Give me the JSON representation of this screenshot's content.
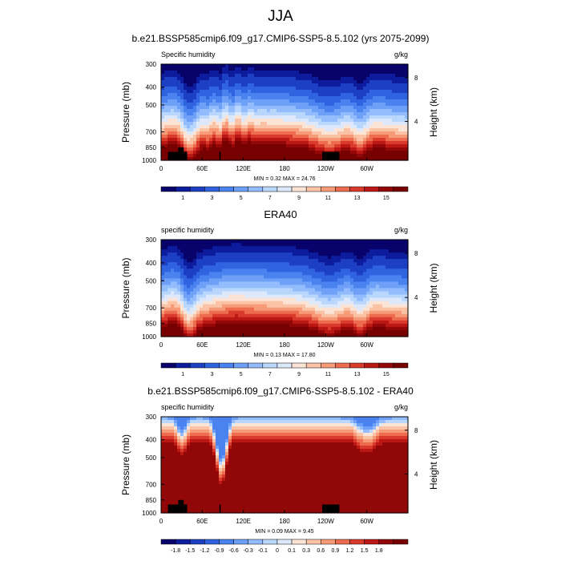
{
  "figure": {
    "title": "JJA"
  },
  "colors": {
    "abs_palette": [
      "#08036b",
      "#0d1c9c",
      "#1d3fc4",
      "#2f63e0",
      "#4a82ef",
      "#6ea0f7",
      "#93bcfc",
      "#b9d6fd",
      "#dde9fb",
      "#fbe3d5",
      "#fbc3a6",
      "#f79a77",
      "#ed6c4f",
      "#d93a2c",
      "#bb1815",
      "#920808",
      "#770101"
    ],
    "diff_palette": [
      "#08036b",
      "#0d1c9c",
      "#1d3fc4",
      "#2f63e0",
      "#4a82ef",
      "#6ea0f7",
      "#93bcfc",
      "#b9d6fd",
      "#dde9fb",
      "#fbe3d5",
      "#fbc3a6",
      "#f79a77",
      "#ed6c4f",
      "#d93a2c",
      "#bb1815",
      "#920808",
      "#770101"
    ]
  },
  "chart_data": [
    {
      "type": "contour",
      "title": "b.e21.BSSP585cmip6.f09_g17.CMIP6-SSP5-8.5.102 (yrs 2075-2099)",
      "left_label": "Specific humidity",
      "right_label": "g/kg",
      "ylabel": "Pressure (mb)",
      "y2label": "Height (km)",
      "yticks": [
        300,
        400,
        500,
        700,
        850,
        1000
      ],
      "y2ticks": [
        8,
        4
      ],
      "xticks": [
        "0",
        "60E",
        "120E",
        "180",
        "120W",
        "60W"
      ],
      "stats": "MIN =   0.32  MAX =  24.76",
      "colorbar_labels": [
        "1",
        "3",
        "5",
        "7",
        "9",
        "11",
        "13",
        "15"
      ],
      "colorbar_levels": [
        0.5,
        1,
        2,
        3,
        4,
        5,
        6,
        7,
        8,
        9,
        10,
        11,
        12,
        13,
        14,
        15
      ],
      "xlim": [
        0,
        360
      ],
      "ylim": [
        1000,
        300
      ],
      "data_range": [
        0.32,
        24.76
      ]
    },
    {
      "type": "contour",
      "title": "ERA40",
      "left_label": "specific humidity",
      "right_label": "g/kg",
      "ylabel": "Pressure (mb)",
      "y2label": "Height (km)",
      "yticks": [
        300,
        400,
        500,
        700,
        850,
        1000
      ],
      "y2ticks": [
        8,
        4
      ],
      "xticks": [
        "0",
        "60E",
        "120E",
        "180",
        "120W",
        "60W"
      ],
      "stats": "MIN =   0.13  MAX =  17.80",
      "colorbar_labels": [
        "1",
        "3",
        "5",
        "7",
        "9",
        "11",
        "13",
        "15"
      ],
      "colorbar_levels": [
        0.5,
        1,
        2,
        3,
        4,
        5,
        6,
        7,
        8,
        9,
        10,
        11,
        12,
        13,
        14,
        15
      ],
      "xlim": [
        0,
        360
      ],
      "ylim": [
        1000,
        300
      ],
      "data_range": [
        0.13,
        17.8
      ]
    },
    {
      "type": "contour",
      "title": "b.e21.BSSP585cmip6.f09_g17.CMIP6-SSP5-8.5.102 - ERA40",
      "left_label": "specific humidity",
      "right_label": "g/kg",
      "ylabel": "Pressure (mb)",
      "y2label": "Height (km)",
      "yticks": [
        300,
        400,
        500,
        700,
        850,
        1000
      ],
      "y2ticks": [
        8,
        4
      ],
      "xticks": [
        "0",
        "60E",
        "120E",
        "180",
        "120W",
        "60W"
      ],
      "stats": "MIN =   0.09  MAX =  9.45",
      "colorbar_labels": [
        "-1.8",
        "-1.5",
        "-1.2",
        "-0.9",
        "-0.6",
        "-0.3",
        "-0.1",
        "0",
        "0.1",
        "0.3",
        "0.6",
        "0.9",
        "1.2",
        "1.5",
        "1.8"
      ],
      "colorbar_levels": [
        -1.8,
        -1.5,
        -1.2,
        -0.9,
        -0.6,
        -0.3,
        -0.1,
        0,
        0.1,
        0.3,
        0.6,
        0.9,
        1.2,
        1.5,
        1.8
      ],
      "xlim": [
        0,
        360
      ],
      "ylim": [
        1000,
        300
      ],
      "data_range": [
        0.09,
        9.45
      ]
    }
  ]
}
